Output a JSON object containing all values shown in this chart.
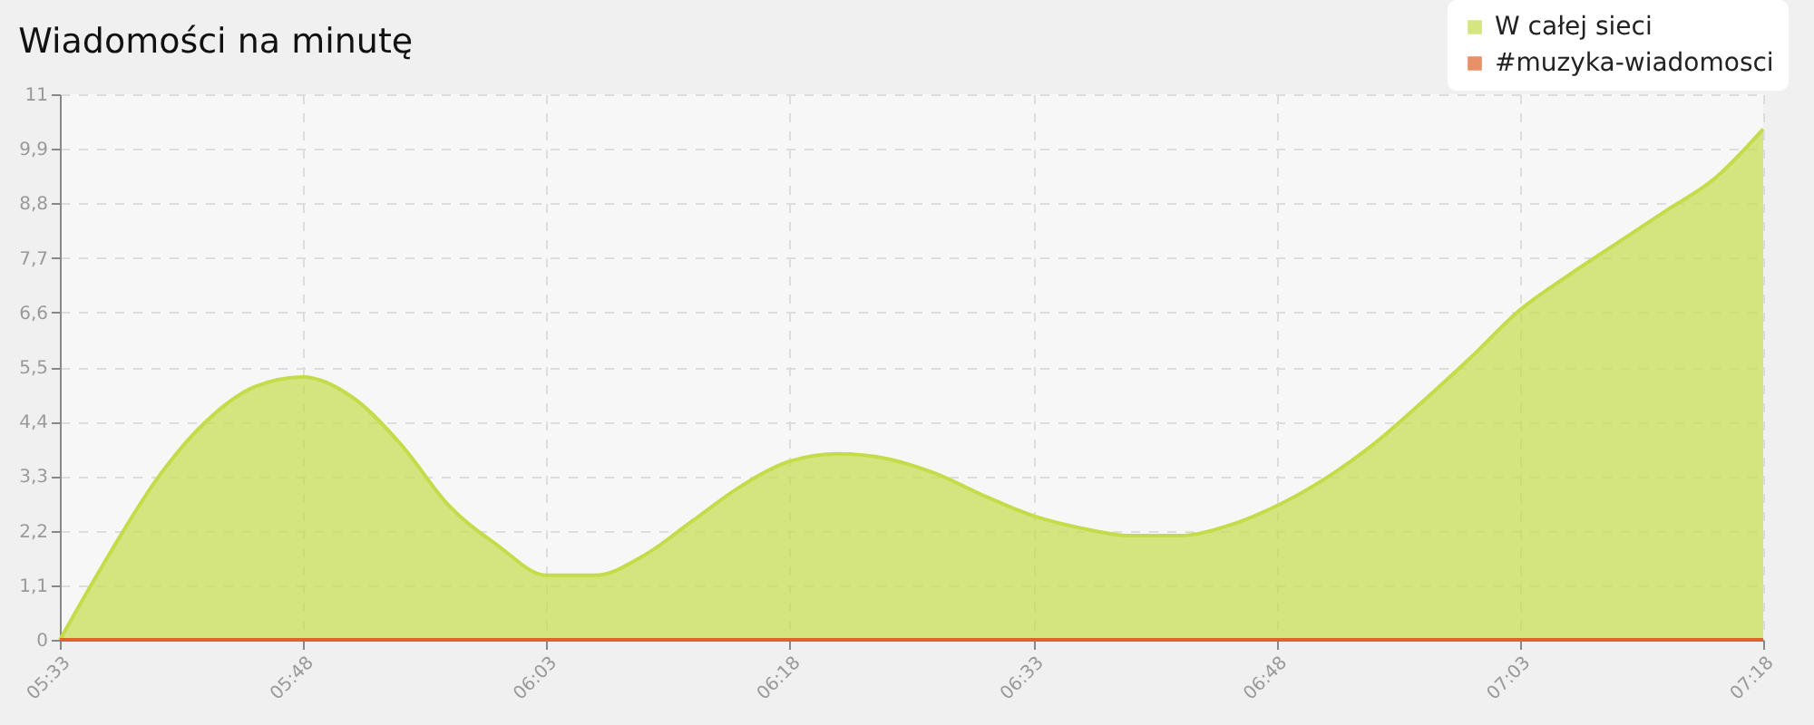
{
  "chart_data": {
    "type": "area",
    "title": "Wiadomości na minutę",
    "x": [
      5.55,
      5.6,
      5.65,
      5.7,
      5.75,
      5.8,
      5.85,
      5.9,
      5.95,
      6.0,
      6.05,
      6.1,
      6.15,
      6.2,
      6.25,
      6.3,
      6.35,
      6.4,
      6.45,
      6.5,
      6.55,
      6.6,
      6.65,
      6.7,
      6.75,
      6.8,
      6.85,
      6.9,
      6.95,
      7.0,
      7.05,
      7.1,
      7.15,
      7.2,
      7.25,
      7.3
    ],
    "series": [
      {
        "name": "W całej sieci",
        "color": "#c5dc4a",
        "values": [
          0,
          1.7,
          3.25,
          4.4,
          5.1,
          5.3,
          4.9,
          3.95,
          2.7,
          1.9,
          1.3,
          1.3,
          1.7,
          2.4,
          3.1,
          3.6,
          3.75,
          3.65,
          3.35,
          2.9,
          2.5,
          2.25,
          2.1,
          2.1,
          2.3,
          2.7,
          3.25,
          3.95,
          4.8,
          5.7,
          6.65,
          7.35,
          8.0,
          8.65,
          9.3,
          10.3
        ]
      },
      {
        "name": "#muzyka-wiadomosci",
        "color": "#e0622a",
        "type": "line",
        "values": [
          0,
          0,
          0,
          0,
          0,
          0,
          0,
          0,
          0,
          0,
          0,
          0,
          0,
          0,
          0,
          0,
          0,
          0,
          0,
          0,
          0,
          0,
          0,
          0,
          0,
          0,
          0,
          0,
          0,
          0,
          0,
          0,
          0,
          0,
          0,
          0
        ]
      }
    ],
    "xlim": [
      5.55,
      7.3
    ],
    "xticks": [
      {
        "value": 5.55,
        "label": "05:33"
      },
      {
        "value": 5.8,
        "label": "05:48"
      },
      {
        "value": 6.05,
        "label": "06:03"
      },
      {
        "value": 6.3,
        "label": "06:18"
      },
      {
        "value": 6.55,
        "label": "06:33"
      },
      {
        "value": 6.8,
        "label": "06:48"
      },
      {
        "value": 7.05,
        "label": "07:03"
      },
      {
        "value": 7.3,
        "label": "07:18"
      }
    ],
    "ylim": [
      0,
      11
    ],
    "yticks": [
      0,
      {
        "value": 1.1,
        "label": "1,1"
      },
      {
        "value": 2.2,
        "label": "2,2"
      },
      {
        "value": 3.3,
        "label": "3,3"
      },
      {
        "value": 4.4,
        "label": "4,4"
      },
      {
        "value": 5.5,
        "label": "5,5"
      },
      {
        "value": 6.6,
        "label": "6,6"
      },
      {
        "value": 7.7,
        "label": "7,7"
      },
      {
        "value": 8.8,
        "label": "8,8"
      },
      {
        "value": 9.9,
        "label": "9,9"
      },
      11
    ],
    "grid": true,
    "legend": "top right"
  }
}
